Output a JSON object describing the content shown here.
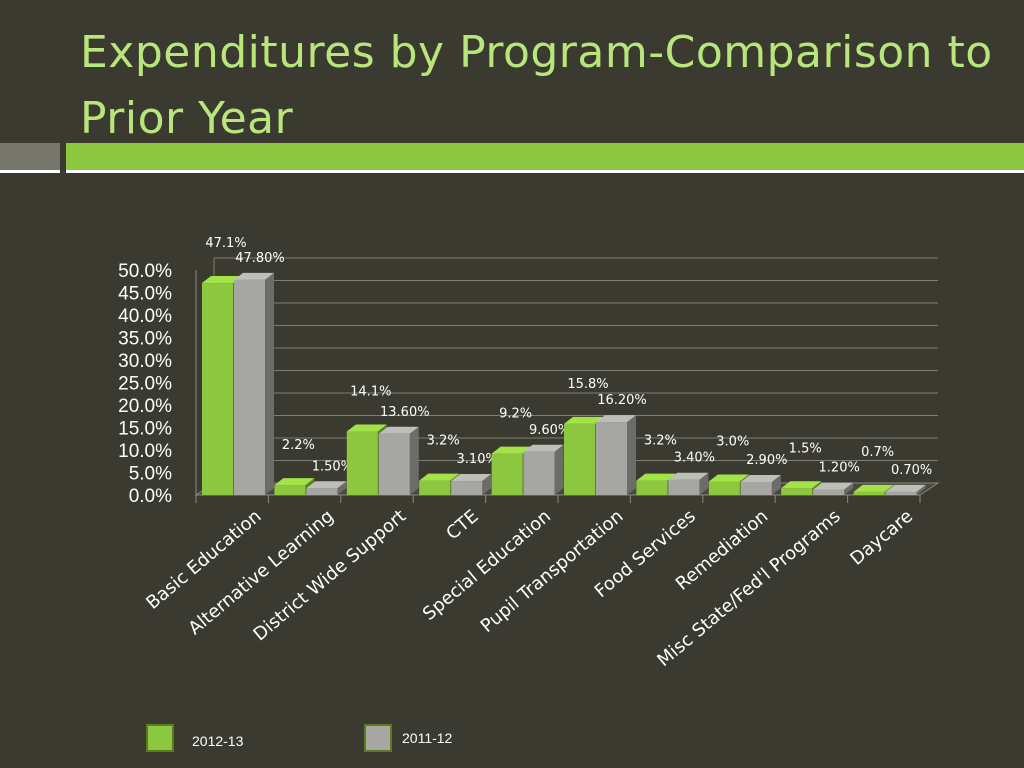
{
  "slide": {
    "title": "Expenditures by Program-Comparison to Prior Year"
  },
  "colors": {
    "background": "#3b3a30",
    "title": "#b9e67a",
    "accent_green": "#8dc63f",
    "accent_gray": "#77766c"
  },
  "chart_data": {
    "type": "bar",
    "title": "",
    "xlabel": "",
    "ylabel": "",
    "ylim": [
      0,
      50
    ],
    "yticks": [
      "0.0%",
      "5.0%",
      "10.0%",
      "15.0%",
      "20.0%",
      "25.0%",
      "30.0%",
      "35.0%",
      "40.0%",
      "45.0%",
      "50.0%"
    ],
    "grid": true,
    "legend_position": "bottom",
    "categories": [
      "Basic Education",
      "Alternative Learning",
      "District Wide Support",
      "CTE",
      "Special Education",
      "Pupil Transportation",
      "Food Services",
      "Remediation",
      "Misc State/Fed'l Programs",
      "Daycare"
    ],
    "series": [
      {
        "name": "2012-13",
        "color": "#8dc63f",
        "values": [
          47.1,
          2.2,
          14.1,
          3.2,
          9.2,
          15.8,
          3.2,
          3.0,
          1.5,
          0.7
        ],
        "labels": [
          "47.1%",
          "2.2%",
          "14.1%",
          "3.2%",
          "9.2%",
          "15.8%",
          "3.2%",
          "3.0%",
          "1.5%",
          "0.7%"
        ]
      },
      {
        "name": "2011-12",
        "color": "#a6a6a2",
        "values": [
          47.8,
          1.5,
          13.6,
          3.1,
          9.6,
          16.2,
          3.4,
          2.9,
          1.2,
          0.7
        ],
        "labels": [
          "47.80%",
          "1.50%",
          "13.60%",
          "3.10%",
          "9.60%",
          "16.20%",
          "3.40%",
          "2.90%",
          "1.20%",
          "0.70%"
        ]
      }
    ]
  },
  "legend": {
    "items": [
      {
        "label": "2012-13",
        "color": "#8dc63f"
      },
      {
        "label": "2011-12",
        "color": "#a6a6a2"
      }
    ]
  }
}
